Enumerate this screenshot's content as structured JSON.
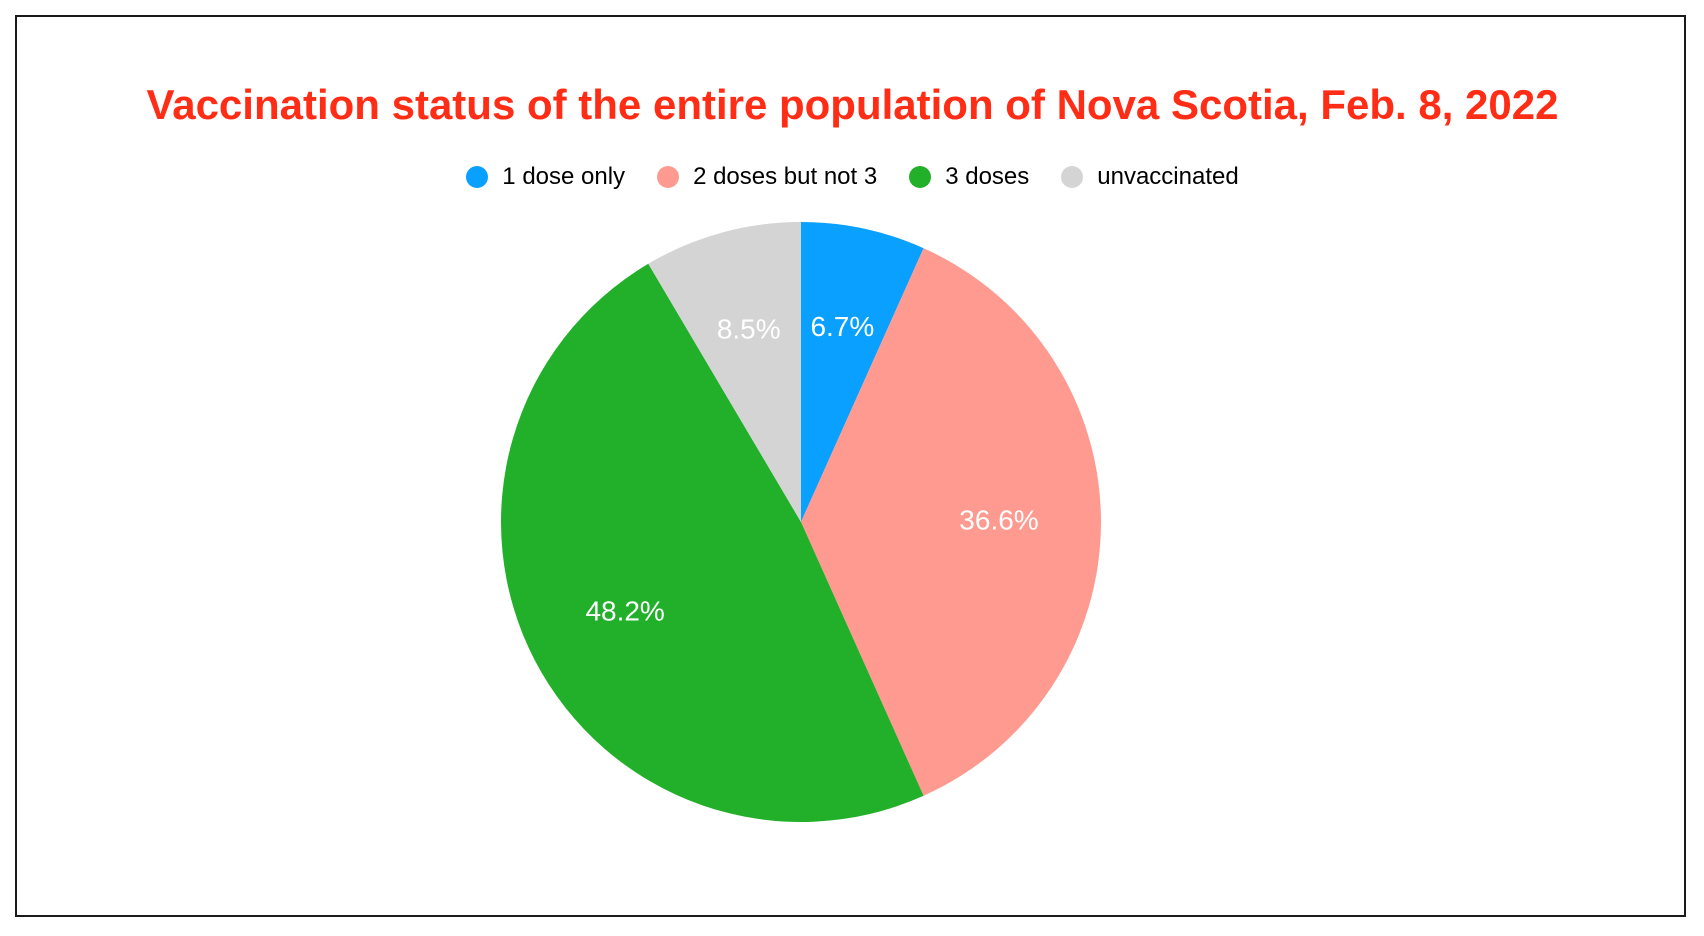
{
  "chart_data": {
    "type": "pie",
    "title": "Vaccination status of the entire population of Nova Scotia, Feb. 8, 2022",
    "legend_position": "top",
    "slices": [
      {
        "name": "1 dose only",
        "value": 6.7,
        "label": "6.7%",
        "color": "#0aa0ff"
      },
      {
        "name": "2 doses but not 3",
        "value": 36.6,
        "label": "36.6%",
        "color": "#ff9a90"
      },
      {
        "name": "3 doses",
        "value": 48.2,
        "label": "48.2%",
        "color": "#22b02a"
      },
      {
        "name": "unvaccinated",
        "value": 8.5,
        "label": "8.5%",
        "color": "#d4d4d4"
      }
    ]
  }
}
